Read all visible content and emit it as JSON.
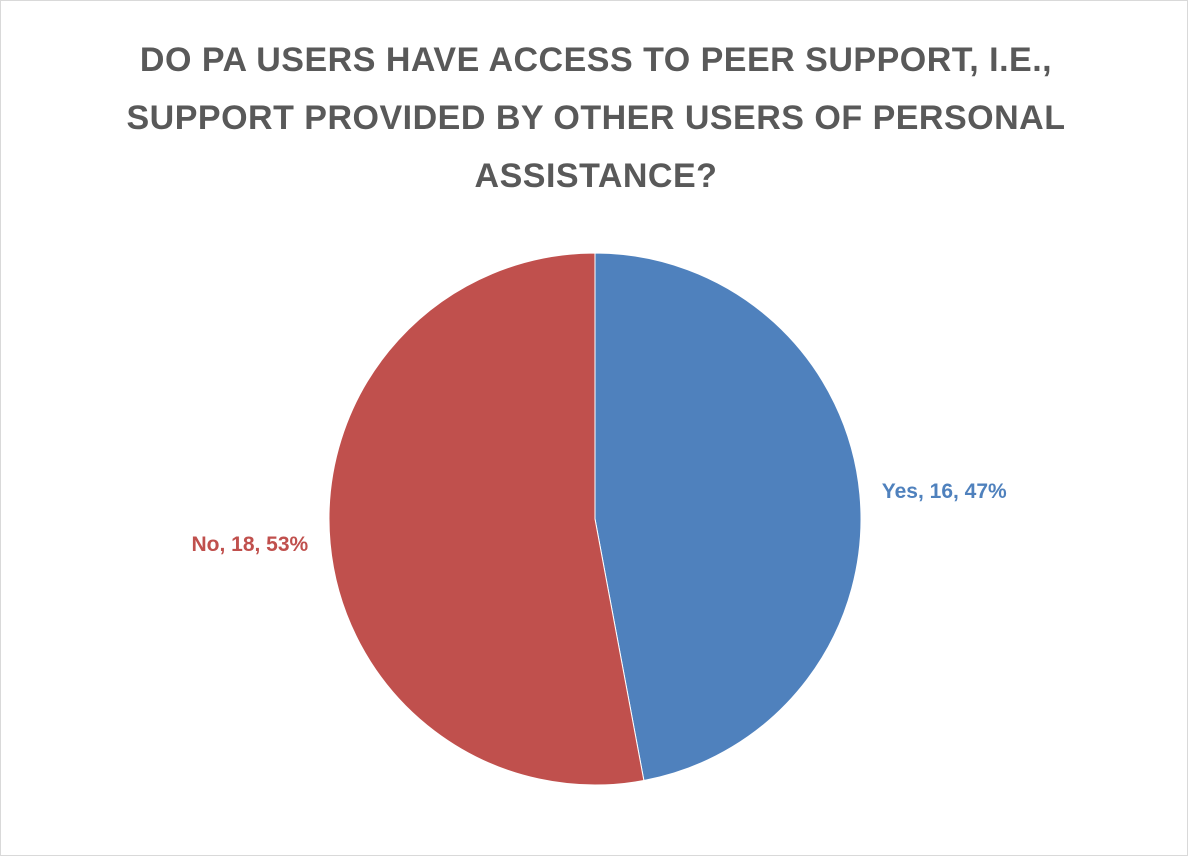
{
  "chart_data": {
    "type": "pie",
    "title": "DO PA USERS HAVE ACCESS TO PEER SUPPORT, I.E., SUPPORT PROVIDED BY OTHER USERS OF PERSONAL ASSISTANCE?",
    "slices": [
      {
        "label": "Yes",
        "value": 16,
        "percent": 47,
        "data_label": "Yes, 16, 47%",
        "color": "#4f81bd"
      },
      {
        "label": "No",
        "value": 18,
        "percent": 53,
        "data_label": "No, 18, 53%",
        "color": "#c0504d"
      }
    ],
    "legend": "none",
    "start_angle": "12 o'clock",
    "direction": "clockwise"
  }
}
